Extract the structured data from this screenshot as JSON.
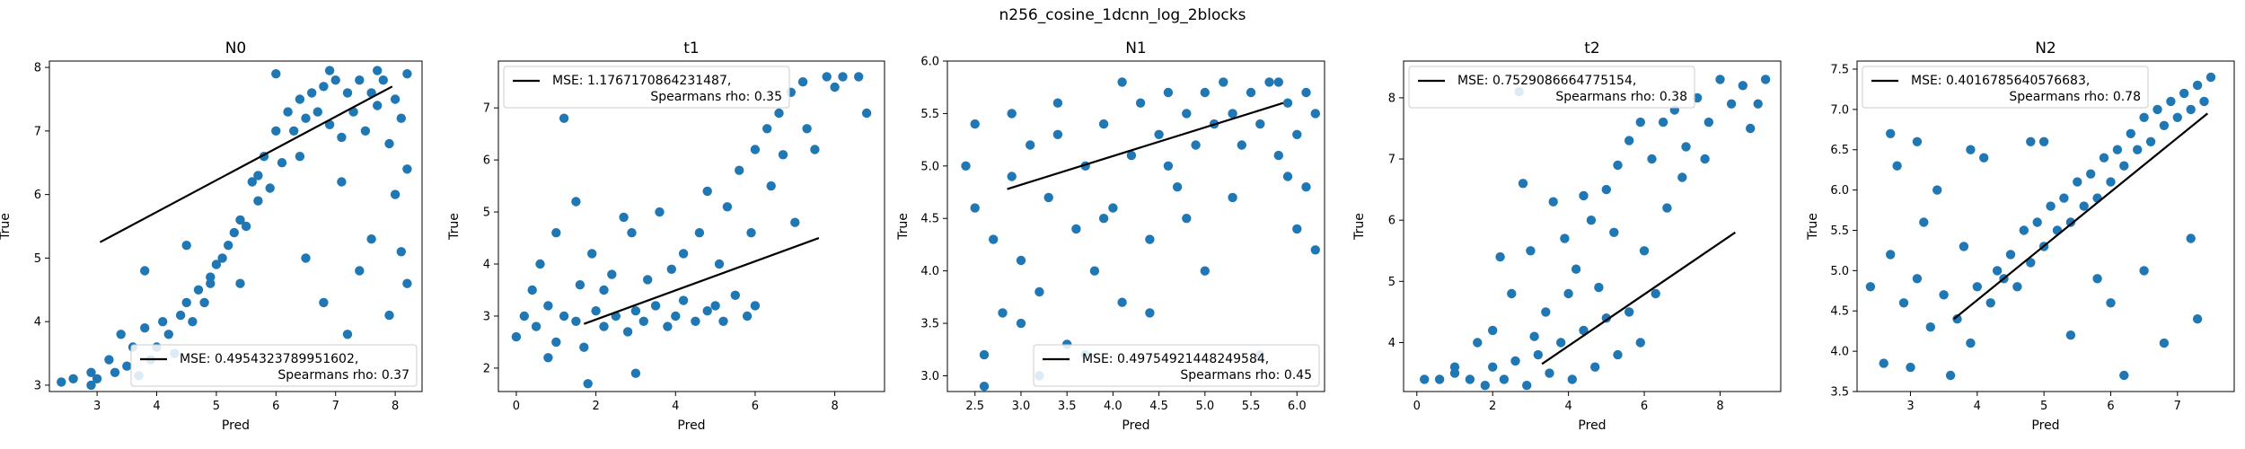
{
  "figure": {
    "suptitle": "n256_cosine_1dcnn_log_2blocks",
    "point_color": "#1f77b4",
    "line_color": "#000000"
  },
  "chart_data": [
    {
      "type": "scatter",
      "title": "N0",
      "xlabel": "Pred",
      "ylabel": "True",
      "xlim": [
        2.2,
        8.45
      ],
      "ylim": [
        2.9,
        8.1
      ],
      "xticks": [
        3,
        4,
        5,
        6,
        7,
        8
      ],
      "yticks": [
        3,
        4,
        5,
        6,
        7,
        8
      ],
      "legend_loc": "lower right",
      "legend": {
        "mse": "MSE: 0.4954323789951602,",
        "rho": "Spearmans rho: 0.37"
      },
      "fit_line": [
        [
          3.05,
          5.25
        ],
        [
          7.95,
          7.7
        ]
      ],
      "points": [
        [
          2.4,
          3.05
        ],
        [
          2.6,
          3.1
        ],
        [
          2.9,
          3.2
        ],
        [
          3.0,
          3.1
        ],
        [
          3.2,
          3.4
        ],
        [
          3.4,
          3.8
        ],
        [
          3.5,
          3.3
        ],
        [
          3.6,
          3.6
        ],
        [
          3.7,
          3.15
        ],
        [
          3.8,
          3.9
        ],
        [
          3.9,
          3.4
        ],
        [
          4.0,
          3.6
        ],
        [
          4.1,
          4.0
        ],
        [
          4.2,
          3.8
        ],
        [
          4.3,
          3.5
        ],
        [
          4.4,
          4.1
        ],
        [
          4.5,
          4.3
        ],
        [
          4.6,
          4.0
        ],
        [
          4.7,
          4.5
        ],
        [
          4.8,
          4.3
        ],
        [
          4.9,
          4.7
        ],
        [
          5.0,
          4.9
        ],
        [
          5.1,
          5.0
        ],
        [
          5.2,
          5.2
        ],
        [
          5.3,
          5.4
        ],
        [
          5.4,
          5.6
        ],
        [
          5.5,
          5.5
        ],
        [
          5.6,
          6.2
        ],
        [
          5.7,
          6.3
        ],
        [
          5.8,
          6.6
        ],
        [
          6.0,
          7.0
        ],
        [
          6.1,
          6.5
        ],
        [
          6.2,
          7.3
        ],
        [
          6.3,
          7.0
        ],
        [
          6.4,
          7.5
        ],
        [
          6.5,
          7.2
        ],
        [
          6.6,
          7.6
        ],
        [
          6.7,
          7.3
        ],
        [
          6.8,
          7.7
        ],
        [
          6.9,
          7.1
        ],
        [
          7.0,
          7.8
        ],
        [
          7.1,
          6.9
        ],
        [
          7.2,
          7.6
        ],
        [
          7.3,
          7.3
        ],
        [
          7.4,
          7.8
        ],
        [
          7.5,
          7.0
        ],
        [
          7.6,
          7.6
        ],
        [
          7.7,
          7.4
        ],
        [
          7.8,
          7.8
        ],
        [
          7.9,
          6.8
        ],
        [
          8.0,
          7.5
        ],
        [
          8.1,
          7.2
        ],
        [
          8.2,
          6.4
        ],
        [
          5.4,
          4.6
        ],
        [
          3.8,
          4.8
        ],
        [
          4.5,
          5.2
        ],
        [
          5.9,
          6.1
        ],
        [
          6.4,
          6.6
        ],
        [
          7.1,
          6.2
        ],
        [
          7.6,
          5.3
        ],
        [
          8.0,
          6.0
        ],
        [
          8.1,
          5.1
        ],
        [
          8.2,
          4.6
        ],
        [
          6.8,
          4.3
        ],
        [
          7.2,
          3.8
        ],
        [
          7.9,
          4.1
        ],
        [
          7.4,
          4.8
        ],
        [
          6.5,
          5.0
        ],
        [
          6.0,
          7.9
        ],
        [
          6.9,
          7.95
        ],
        [
          7.7,
          7.95
        ],
        [
          8.2,
          7.9
        ],
        [
          5.7,
          5.9
        ],
        [
          4.9,
          4.6
        ],
        [
          2.9,
          3.0
        ],
        [
          3.3,
          3.2
        ]
      ]
    },
    {
      "type": "scatter",
      "title": "t1",
      "xlabel": "Pred",
      "ylabel": "True",
      "xlim": [
        -0.45,
        9.25
      ],
      "ylim": [
        1.55,
        7.9
      ],
      "xticks": [
        0,
        2,
        4,
        6,
        8
      ],
      "yticks": [
        2,
        3,
        4,
        5,
        6,
        7
      ],
      "legend_loc": "upper left",
      "legend": {
        "mse": "MSE: 1.1767170864231487,",
        "rho": "Spearmans rho: 0.35"
      },
      "fit_line": [
        [
          1.7,
          2.85
        ],
        [
          7.6,
          4.5
        ]
      ],
      "points": [
        [
          0.0,
          2.6
        ],
        [
          0.2,
          3.0
        ],
        [
          0.5,
          2.8
        ],
        [
          0.8,
          3.2
        ],
        [
          1.0,
          2.5
        ],
        [
          1.2,
          3.0
        ],
        [
          1.5,
          2.9
        ],
        [
          1.7,
          2.4
        ],
        [
          2.0,
          3.1
        ],
        [
          2.2,
          2.8
        ],
        [
          2.5,
          3.0
        ],
        [
          2.8,
          2.7
        ],
        [
          3.0,
          3.1
        ],
        [
          3.2,
          2.9
        ],
        [
          3.5,
          3.2
        ],
        [
          3.8,
          2.8
        ],
        [
          4.0,
          3.0
        ],
        [
          4.2,
          3.3
        ],
        [
          4.5,
          2.9
        ],
        [
          4.8,
          3.1
        ],
        [
          5.0,
          3.2
        ],
        [
          5.2,
          2.9
        ],
        [
          5.5,
          3.4
        ],
        [
          5.8,
          3.0
        ],
        [
          6.0,
          3.2
        ],
        [
          1.8,
          1.7
        ],
        [
          0.8,
          2.2
        ],
        [
          3.0,
          1.9
        ],
        [
          1.0,
          4.6
        ],
        [
          1.5,
          5.2
        ],
        [
          1.9,
          4.2
        ],
        [
          2.4,
          3.8
        ],
        [
          0.6,
          4.0
        ],
        [
          1.2,
          6.8
        ],
        [
          0.4,
          3.5
        ],
        [
          2.9,
          4.6
        ],
        [
          3.6,
          5.0
        ],
        [
          4.2,
          4.2
        ],
        [
          4.8,
          5.4
        ],
        [
          5.3,
          5.1
        ],
        [
          5.6,
          5.8
        ],
        [
          6.0,
          6.2
        ],
        [
          6.3,
          6.6
        ],
        [
          6.6,
          6.9
        ],
        [
          6.9,
          7.3
        ],
        [
          7.2,
          7.5
        ],
        [
          7.5,
          6.2
        ],
        [
          7.8,
          7.6
        ],
        [
          8.0,
          7.4
        ],
        [
          8.2,
          7.6
        ],
        [
          8.6,
          7.6
        ],
        [
          8.8,
          6.9
        ],
        [
          7.0,
          4.8
        ],
        [
          6.4,
          5.5
        ],
        [
          5.9,
          4.6
        ],
        [
          3.3,
          3.7
        ],
        [
          2.7,
          4.9
        ],
        [
          1.6,
          3.6
        ],
        [
          4.6,
          4.6
        ],
        [
          5.1,
          4.0
        ],
        [
          6.7,
          6.1
        ],
        [
          7.3,
          6.6
        ],
        [
          2.2,
          3.5
        ],
        [
          3.9,
          3.9
        ]
      ]
    },
    {
      "type": "scatter",
      "title": "N1",
      "xlabel": "Pred",
      "ylabel": "True",
      "xlim": [
        2.2,
        6.3
      ],
      "ylim": [
        2.85,
        6.0
      ],
      "xticks": [
        2.5,
        3.0,
        3.5,
        4.0,
        4.5,
        5.0,
        5.5,
        6.0
      ],
      "yticks": [
        3.0,
        3.5,
        4.0,
        4.5,
        5.0,
        5.5,
        6.0
      ],
      "legend_loc": "lower right",
      "legend": {
        "mse": "MSE: 0.49754921448249584,",
        "rho": "Spearmans rho: 0.45"
      },
      "fit_line": [
        [
          2.85,
          4.78
        ],
        [
          5.85,
          5.6
        ]
      ],
      "points": [
        [
          2.4,
          5.0
        ],
        [
          2.5,
          4.6
        ],
        [
          2.6,
          3.2
        ],
        [
          2.7,
          4.3
        ],
        [
          2.8,
          3.6
        ],
        [
          2.9,
          4.9
        ],
        [
          3.0,
          4.1
        ],
        [
          3.1,
          5.2
        ],
        [
          3.2,
          3.8
        ],
        [
          3.3,
          4.7
        ],
        [
          3.4,
          5.3
        ],
        [
          3.5,
          3.3
        ],
        [
          3.6,
          4.4
        ],
        [
          3.7,
          5.0
        ],
        [
          3.8,
          4.0
        ],
        [
          3.9,
          5.4
        ],
        [
          4.0,
          4.6
        ],
        [
          4.1,
          3.7
        ],
        [
          4.2,
          5.1
        ],
        [
          4.3,
          5.6
        ],
        [
          4.4,
          4.3
        ],
        [
          4.5,
          5.3
        ],
        [
          4.6,
          5.7
        ],
        [
          4.7,
          4.8
        ],
        [
          4.8,
          5.5
        ],
        [
          4.9,
          5.2
        ],
        [
          5.0,
          5.7
        ],
        [
          5.1,
          5.4
        ],
        [
          5.2,
          5.8
        ],
        [
          5.3,
          5.5
        ],
        [
          5.4,
          5.2
        ],
        [
          5.5,
          5.7
        ],
        [
          5.6,
          5.4
        ],
        [
          5.7,
          5.8
        ],
        [
          5.8,
          5.1
        ],
        [
          5.9,
          5.6
        ],
        [
          6.0,
          5.3
        ],
        [
          6.1,
          5.7
        ],
        [
          6.2,
          4.2
        ],
        [
          6.1,
          4.8
        ],
        [
          6.0,
          4.4
        ],
        [
          5.6,
          3.2
        ],
        [
          5.0,
          4.0
        ],
        [
          4.4,
          3.6
        ],
        [
          3.2,
          3.0
        ],
        [
          2.6,
          2.9
        ],
        [
          3.7,
          3.2
        ],
        [
          4.8,
          4.5
        ],
        [
          5.3,
          4.7
        ],
        [
          5.9,
          4.9
        ],
        [
          4.1,
          5.8
        ],
        [
          3.4,
          5.6
        ],
        [
          2.9,
          5.5
        ],
        [
          2.5,
          5.4
        ],
        [
          5.8,
          5.8
        ],
        [
          6.2,
          5.5
        ],
        [
          4.6,
          5.0
        ],
        [
          3.9,
          4.5
        ],
        [
          3.0,
          3.5
        ]
      ]
    },
    {
      "type": "scatter",
      "title": "t2",
      "xlabel": "Pred",
      "ylabel": "True",
      "xlim": [
        -0.35,
        9.6
      ],
      "ylim": [
        3.2,
        8.6
      ],
      "xticks": [
        0,
        2,
        4,
        6,
        8
      ],
      "yticks": [
        4,
        5,
        6,
        7,
        8
      ],
      "legend_loc": "upper left",
      "legend": {
        "mse": "MSE: 0.7529086664775154,",
        "rho": "Spearmans rho: 0.38"
      },
      "fit_line": [
        [
          3.3,
          3.65
        ],
        [
          8.4,
          5.8
        ]
      ],
      "points": [
        [
          0.2,
          3.4
        ],
        [
          0.6,
          3.4
        ],
        [
          1.0,
          3.5
        ],
        [
          1.4,
          3.4
        ],
        [
          1.8,
          3.3
        ],
        [
          2.0,
          3.6
        ],
        [
          2.3,
          3.4
        ],
        [
          2.6,
          3.7
        ],
        [
          2.9,
          3.3
        ],
        [
          3.2,
          3.8
        ],
        [
          3.5,
          3.5
        ],
        [
          3.8,
          4.0
        ],
        [
          4.1,
          3.4
        ],
        [
          4.4,
          4.2
        ],
        [
          4.7,
          3.6
        ],
        [
          5.0,
          4.4
        ],
        [
          5.3,
          3.8
        ],
        [
          5.6,
          4.5
        ],
        [
          5.9,
          4.0
        ],
        [
          2.5,
          4.8
        ],
        [
          2.8,
          6.6
        ],
        [
          3.0,
          5.5
        ],
        [
          3.6,
          6.3
        ],
        [
          2.2,
          5.4
        ],
        [
          2.7,
          8.1
        ],
        [
          3.9,
          5.7
        ],
        [
          4.2,
          5.2
        ],
        [
          4.6,
          6.0
        ],
        [
          5.0,
          6.5
        ],
        [
          5.3,
          6.9
        ],
        [
          5.6,
          7.3
        ],
        [
          5.9,
          7.6
        ],
        [
          6.2,
          7.0
        ],
        [
          6.5,
          7.6
        ],
        [
          6.8,
          7.8
        ],
        [
          7.1,
          7.2
        ],
        [
          7.4,
          8.0
        ],
        [
          7.7,
          7.6
        ],
        [
          8.0,
          8.3
        ],
        [
          8.3,
          7.9
        ],
        [
          8.6,
          8.2
        ],
        [
          9.0,
          7.9
        ],
        [
          9.2,
          8.3
        ],
        [
          6.0,
          5.5
        ],
        [
          6.3,
          4.8
        ],
        [
          4.8,
          4.9
        ],
        [
          3.4,
          4.5
        ],
        [
          2.0,
          4.2
        ],
        [
          1.6,
          4.0
        ],
        [
          7.0,
          6.7
        ],
        [
          7.6,
          7.0
        ],
        [
          8.8,
          7.5
        ],
        [
          5.2,
          5.8
        ],
        [
          4.4,
          6.4
        ],
        [
          6.6,
          6.2
        ],
        [
          3.1,
          4.1
        ],
        [
          4.0,
          4.8
        ],
        [
          1.0,
          3.6
        ]
      ]
    },
    {
      "type": "scatter",
      "title": "N2",
      "xlabel": "Pred",
      "ylabel": "True",
      "xlim": [
        2.2,
        7.85
      ],
      "ylim": [
        3.5,
        7.6
      ],
      "xticks": [
        3,
        4,
        5,
        6,
        7
      ],
      "yticks": [
        3.5,
        4.0,
        4.5,
        5.0,
        5.5,
        6.0,
        6.5,
        7.0,
        7.5
      ],
      "legend_loc": "upper left",
      "legend": {
        "mse": "MSE: 0.4016785640576683,",
        "rho": "Spearmans rho: 0.78"
      },
      "fit_line": [
        [
          3.65,
          4.4
        ],
        [
          7.45,
          6.95
        ]
      ],
      "points": [
        [
          2.4,
          4.8
        ],
        [
          2.6,
          3.85
        ],
        [
          2.7,
          5.2
        ],
        [
          2.8,
          6.3
        ],
        [
          2.9,
          4.6
        ],
        [
          3.0,
          3.8
        ],
        [
          3.1,
          4.9
        ],
        [
          3.2,
          5.6
        ],
        [
          3.3,
          4.3
        ],
        [
          3.4,
          6.0
        ],
        [
          3.5,
          4.7
        ],
        [
          3.6,
          3.7
        ],
        [
          3.7,
          4.4
        ],
        [
          3.8,
          5.3
        ],
        [
          3.9,
          4.1
        ],
        [
          4.0,
          4.8
        ],
        [
          4.1,
          6.4
        ],
        [
          4.2,
          4.6
        ],
        [
          4.3,
          5.0
        ],
        [
          4.4,
          4.9
        ],
        [
          4.5,
          5.2
        ],
        [
          4.6,
          4.8
        ],
        [
          4.7,
          5.5
        ],
        [
          4.8,
          5.1
        ],
        [
          4.9,
          5.6
        ],
        [
          5.0,
          5.3
        ],
        [
          5.1,
          5.8
        ],
        [
          5.2,
          5.5
        ],
        [
          5.3,
          5.9
        ],
        [
          5.4,
          5.6
        ],
        [
          5.5,
          6.1
        ],
        [
          5.6,
          5.8
        ],
        [
          5.7,
          6.2
        ],
        [
          5.8,
          5.9
        ],
        [
          5.9,
          6.4
        ],
        [
          6.0,
          6.1
        ],
        [
          6.1,
          6.5
        ],
        [
          6.2,
          6.3
        ],
        [
          6.3,
          6.7
        ],
        [
          6.4,
          6.5
        ],
        [
          6.5,
          6.9
        ],
        [
          6.6,
          6.6
        ],
        [
          6.7,
          7.0
        ],
        [
          6.8,
          6.8
        ],
        [
          6.9,
          7.1
        ],
        [
          7.0,
          6.9
        ],
        [
          7.1,
          7.2
        ],
        [
          7.2,
          7.0
        ],
        [
          7.3,
          7.3
        ],
        [
          7.4,
          7.1
        ],
        [
          7.5,
          7.4
        ],
        [
          6.2,
          3.7
        ],
        [
          6.8,
          4.1
        ],
        [
          7.3,
          4.4
        ],
        [
          6.0,
          4.6
        ],
        [
          5.4,
          4.2
        ],
        [
          4.8,
          6.6
        ],
        [
          3.9,
          6.5
        ],
        [
          3.1,
          6.6
        ],
        [
          2.7,
          6.7
        ],
        [
          5.0,
          6.6
        ],
        [
          7.2,
          5.4
        ],
        [
          6.5,
          5.0
        ],
        [
          5.8,
          4.9
        ]
      ]
    }
  ]
}
